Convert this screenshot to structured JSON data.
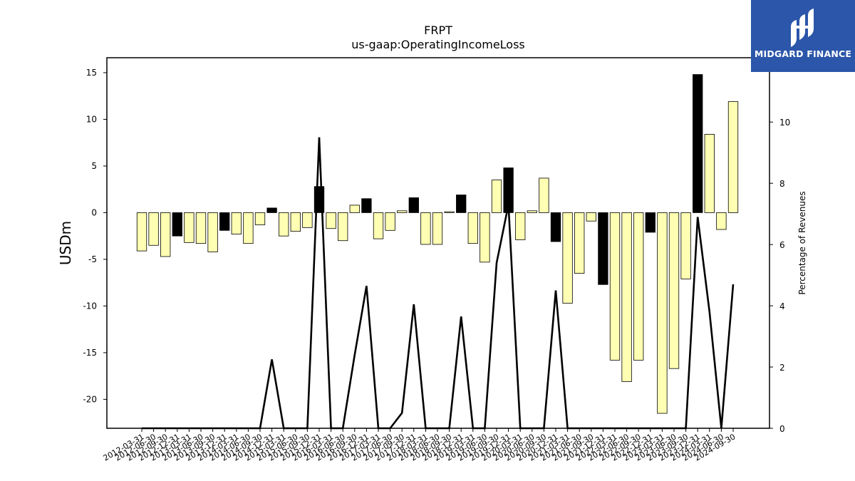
{
  "title": "FRPT",
  "subtitle": "us-gaap:OperatingIncomeLoss",
  "brand": {
    "name": "MIDGARD FINANCE",
    "color": "#2b56a9"
  },
  "chart_data": {
    "type": "bar",
    "categories": [
      "2012-03-31",
      "2012-06-30",
      "2012-09-30",
      "2012-12-31",
      "2013-03-31",
      "2013-06-30",
      "2013-09-30",
      "2013-12-31",
      "2014-03-31",
      "2014-06-30",
      "2014-09-30",
      "2014-12-31",
      "2015-03-31",
      "2015-06-30",
      "2015-09-30",
      "2015-12-31",
      "2016-03-31",
      "2016-06-30",
      "2016-09-30",
      "2016-12-31",
      "2017-03-31",
      "2017-06-30",
      "2017-09-30",
      "2017-12-31",
      "2018-03-31",
      "2018-06-30",
      "2018-09-30",
      "2018-12-31",
      "2019-03-31",
      "2019-06-30",
      "2019-09-30",
      "2019-12-31",
      "2020-03-31",
      "2020-06-30",
      "2020-09-30",
      "2020-12-31",
      "2021-03-31",
      "2021-06-30",
      "2021-09-30",
      "2021-12-31",
      "2022-03-31",
      "2022-06-30",
      "2022-09-30",
      "2022-12-31",
      "2023-03-31",
      "2023-06-30",
      "2023-09-30",
      "2023-12-31",
      "2024-03-31",
      "2024-06-30",
      "2024-09-30"
    ],
    "series": [
      {
        "name": "",
        "axis": "left",
        "values": [
          -4.1,
          -3.5,
          -4.7,
          -2.5,
          -3.2,
          -3.3,
          -4.2,
          -1.9,
          -2.3,
          -3.3,
          -1.3,
          0.5,
          -2.5,
          -2.0,
          -1.6,
          2.8,
          -1.7,
          -3.0,
          0.8,
          1.5,
          -2.8,
          -1.9,
          0.2,
          1.6,
          -3.4,
          -3.4,
          0.1,
          1.9,
          -3.3,
          -5.3,
          3.5,
          4.8,
          -2.9,
          0.2,
          3.7,
          -3.1,
          -9.7,
          -6.5,
          -0.9,
          -7.7,
          -15.8,
          -18.1,
          -15.8,
          -2.1,
          -21.5,
          -16.7,
          -7.1,
          14.8,
          8.4,
          -1.8,
          11.9
        ],
        "colors": [
          "#ffffb3",
          "#ffffb3",
          "#ffffb3",
          "#000000",
          "#ffffb3",
          "#ffffb3",
          "#ffffb3",
          "#000000",
          "#ffffb3",
          "#ffffb3",
          "#ffffb3",
          "#000000",
          "#ffffb3",
          "#ffffb3",
          "#ffffb3",
          "#000000",
          "#ffffb3",
          "#ffffb3",
          "#ffffb3",
          "#000000",
          "#ffffb3",
          "#ffffb3",
          "#ffffb3",
          "#000000",
          "#ffffb3",
          "#ffffb3",
          "#ffffb3",
          "#000000",
          "#ffffb3",
          "#ffffb3",
          "#ffffb3",
          "#000000",
          "#ffffb3",
          "#ffffb3",
          "#ffffb3",
          "#000000",
          "#ffffb3",
          "#ffffb3",
          "#ffffb3",
          "#000000",
          "#ffffb3",
          "#ffffb3",
          "#ffffb3",
          "#000000",
          "#ffffb3",
          "#ffffb3",
          "#ffffb3",
          "#000000",
          "#ffffb3",
          "#ffffb3",
          "#ffffb3"
        ]
      },
      {
        "name": "",
        "axis": "right",
        "type": "line",
        "values": [
          0,
          0,
          0,
          0,
          0,
          0,
          0,
          0,
          0,
          0,
          0,
          2.25,
          0,
          0,
          0,
          9.5,
          0,
          0,
          2.4,
          4.65,
          0,
          0,
          0.5,
          4.05,
          0,
          0,
          0,
          3.65,
          0,
          0,
          5.4,
          7.3,
          0,
          0,
          0,
          4.5,
          0,
          0,
          0,
          0,
          0,
          0,
          0,
          0,
          0,
          0,
          0,
          6.9,
          3.8,
          0,
          4.7
        ]
      }
    ],
    "xlabel": "",
    "ylabel": "USDm",
    "ylabel_right": "Percentage of Revenues",
    "ylim": [
      -23.1,
      16.6
    ],
    "yticks": [
      15,
      10,
      5,
      0,
      -5,
      -10,
      -15,
      -20
    ],
    "ylim_right": [
      0,
      12.1
    ],
    "yticks_right": [
      0,
      2,
      4,
      6,
      8,
      10
    ],
    "grid": false,
    "legend": "none"
  }
}
